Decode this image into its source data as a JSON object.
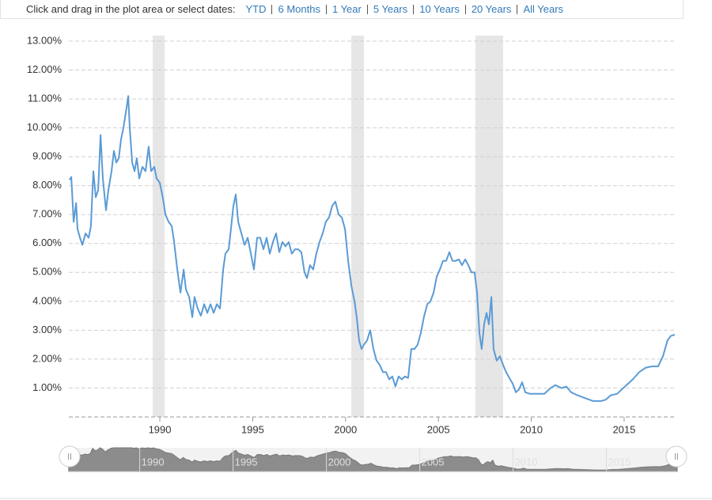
{
  "toolbar": {
    "label": "Click and drag in the plot area or select dates:",
    "buttons": [
      "YTD",
      "6 Months",
      "1 Year",
      "5 Years",
      "10 Years",
      "20 Years",
      "All Years"
    ]
  },
  "chart_data": {
    "type": "line",
    "color": "#5b9bd5",
    "grid": true,
    "xlim": [
      1985.1,
      2017.73
    ],
    "xticks": [
      1990,
      1995,
      2000,
      2005,
      2010,
      2015
    ],
    "ylim": [
      0,
      13
    ],
    "yticks": [
      {
        "value": 1,
        "label": "1.00%"
      },
      {
        "value": 2,
        "label": "2.00%"
      },
      {
        "value": 3,
        "label": "3.00%"
      },
      {
        "value": 4,
        "label": "4.00%"
      },
      {
        "value": 5,
        "label": "5.00%"
      },
      {
        "value": 6,
        "label": "6.00%"
      },
      {
        "value": 7,
        "label": "7.00%"
      },
      {
        "value": 8,
        "label": "8.00%"
      },
      {
        "value": 9,
        "label": "9.00%"
      },
      {
        "value": 10,
        "label": "10.00%"
      },
      {
        "value": 11,
        "label": "11.00%"
      },
      {
        "value": 12,
        "label": "12.00%"
      },
      {
        "value": 13,
        "label": "13.00%"
      }
    ],
    "recessions": [
      [
        1989.62,
        1990.26
      ],
      [
        2000.31,
        2000.99
      ],
      [
        2006.99,
        2008.48
      ]
    ],
    "x": [
      1985.14,
      1985.23,
      1985.36,
      1985.49,
      1985.57,
      1985.7,
      1985.83,
      1986.0,
      1986.17,
      1986.29,
      1986.42,
      1986.55,
      1986.68,
      1986.81,
      1986.93,
      1987.1,
      1987.23,
      1987.4,
      1987.53,
      1987.66,
      1987.79,
      1987.91,
      1988.04,
      1988.21,
      1988.3,
      1988.38,
      1988.51,
      1988.64,
      1988.76,
      1988.89,
      1989.06,
      1989.23,
      1989.4,
      1989.53,
      1989.7,
      1989.83,
      1990.0,
      1990.17,
      1990.3,
      1990.47,
      1990.64,
      1990.77,
      1990.94,
      1991.11,
      1991.28,
      1991.41,
      1991.58,
      1991.75,
      1991.87,
      1992.04,
      1992.21,
      1992.39,
      1992.56,
      1992.73,
      1992.9,
      1993.07,
      1993.24,
      1993.41,
      1993.53,
      1993.71,
      1993.83,
      1993.96,
      1994.09,
      1994.22,
      1994.39,
      1994.56,
      1994.73,
      1994.9,
      1995.07,
      1995.24,
      1995.41,
      1995.58,
      1995.75,
      1995.92,
      1996.09,
      1996.26,
      1996.43,
      1996.6,
      1996.77,
      1996.94,
      1997.11,
      1997.28,
      1997.45,
      1997.62,
      1997.79,
      1997.92,
      1998.09,
      1998.26,
      1998.43,
      1998.6,
      1998.77,
      1998.94,
      1999.11,
      1999.28,
      1999.45,
      1999.63,
      1999.8,
      1999.97,
      2000.14,
      2000.31,
      2000.48,
      2000.6,
      2000.73,
      2000.86,
      2000.99,
      2001.16,
      2001.33,
      2001.5,
      2001.67,
      2001.84,
      2002.01,
      2002.18,
      2002.35,
      2002.52,
      2002.69,
      2002.86,
      2003.03,
      2003.2,
      2003.37,
      2003.54,
      2003.71,
      2003.88,
      2004.05,
      2004.22,
      2004.4,
      2004.57,
      2004.74,
      2004.91,
      2005.08,
      2005.25,
      2005.42,
      2005.59,
      2005.76,
      2005.93,
      2006.1,
      2006.27,
      2006.44,
      2006.61,
      2006.78,
      2006.95,
      2007.08,
      2007.21,
      2007.33,
      2007.46,
      2007.59,
      2007.72,
      2007.85,
      2007.97,
      2008.14,
      2008.31,
      2008.48,
      2008.65,
      2008.82,
      2009.0,
      2009.17,
      2009.34,
      2009.51,
      2009.68,
      2009.93,
      2010.36,
      2010.7,
      2011.04,
      2011.29,
      2011.64,
      2011.89,
      2012.15,
      2012.49,
      2012.91,
      2013.34,
      2013.77,
      2014.02,
      2014.28,
      2014.62,
      2015.04,
      2015.47,
      2015.81,
      2016.15,
      2016.49,
      2016.83,
      2017.09,
      2017.34,
      2017.51,
      2017.73
    ],
    "values": [
      8.2,
      8.3,
      6.75,
      7.4,
      6.5,
      6.2,
      5.95,
      6.35,
      6.2,
      6.6,
      8.5,
      7.6,
      7.85,
      9.75,
      8.25,
      7.15,
      7.85,
      8.5,
      9.2,
      8.8,
      8.95,
      9.6,
      10.0,
      10.7,
      11.1,
      10.0,
      8.8,
      8.5,
      8.95,
      8.25,
      8.65,
      8.5,
      9.35,
      8.5,
      8.65,
      8.25,
      8.1,
      7.55,
      7.0,
      6.75,
      6.6,
      6.05,
      5.1,
      4.3,
      5.1,
      4.4,
      4.15,
      3.45,
      4.15,
      3.75,
      3.5,
      3.9,
      3.6,
      3.9,
      3.6,
      3.9,
      3.75,
      5.1,
      5.65,
      5.8,
      6.5,
      7.3,
      7.7,
      6.75,
      6.35,
      5.95,
      6.2,
      5.65,
      5.1,
      6.2,
      6.2,
      5.8,
      6.2,
      5.65,
      6.05,
      6.35,
      5.7,
      6.05,
      5.9,
      6.05,
      5.65,
      5.8,
      5.8,
      5.7,
      5.0,
      4.8,
      5.25,
      5.1,
      5.65,
      6.05,
      6.35,
      6.75,
      6.9,
      7.3,
      7.45,
      7.0,
      6.9,
      6.5,
      5.4,
      4.55,
      4.0,
      3.45,
      2.65,
      2.35,
      2.5,
      2.65,
      3.0,
      2.35,
      1.95,
      1.8,
      1.55,
      1.55,
      1.3,
      1.4,
      1.05,
      1.4,
      1.3,
      1.4,
      1.35,
      2.35,
      2.35,
      2.5,
      2.9,
      3.45,
      3.9,
      4.0,
      4.3,
      4.85,
      5.1,
      5.4,
      5.4,
      5.7,
      5.4,
      5.4,
      5.45,
      5.25,
      5.45,
      5.25,
      5.0,
      5.0,
      4.3,
      2.9,
      2.35,
      3.2,
      3.6,
      3.2,
      4.15,
      2.35,
      1.95,
      2.1,
      1.8,
      1.55,
      1.35,
      1.15,
      0.85,
      0.95,
      1.2,
      0.85,
      0.8,
      0.8,
      0.8,
      1.0,
      1.1,
      1.0,
      1.05,
      0.85,
      0.75,
      0.65,
      0.55,
      0.55,
      0.6,
      0.75,
      0.8,
      1.05,
      1.3,
      1.55,
      1.7,
      1.75,
      1.75,
      2.1,
      2.65,
      2.8,
      2.85
    ]
  }
}
